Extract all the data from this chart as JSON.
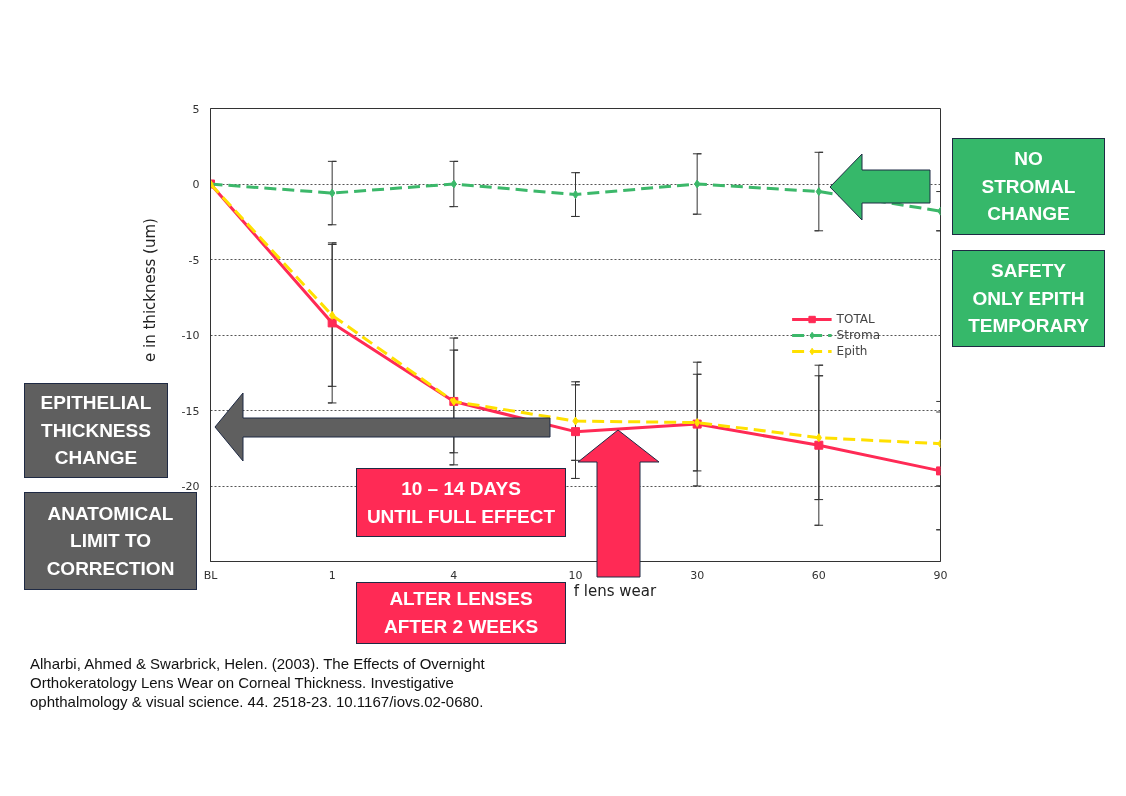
{
  "chart_data": {
    "type": "line",
    "categories": [
      "BL",
      "1",
      "4",
      "10",
      "30",
      "60",
      "90"
    ],
    "xlabel": "f lens wear",
    "ylabel": "e in thickness (um)",
    "ylim": [
      -25,
      5
    ],
    "yticks": [
      {
        "value": -25,
        "label": null
      },
      -20,
      -15,
      -10,
      -5,
      0,
      5
    ],
    "grid": "y",
    "legend": "right",
    "series": [
      {
        "name": "TOTAL",
        "color": "#ff2a55",
        "marker": "square",
        "line_style": "solid",
        "values": [
          0,
          -9.2,
          -14.4,
          -16.4,
          -15.9,
          -17.3,
          -19.0
        ],
        "errors": [
          null,
          5.3,
          4.2,
          3.1,
          4.1,
          5.3,
          3.9
        ]
      },
      {
        "name": "Stroma",
        "color": "#3cb86a",
        "marker": "diamond",
        "line_style": "dashed",
        "values": [
          0,
          -0.6,
          0,
          -0.7,
          0,
          -0.5,
          -1.8
        ],
        "errors": [
          null,
          2.1,
          1.5,
          1.45,
          2.0,
          2.6,
          1.3
        ]
      },
      {
        "name": "Epith",
        "color": "#ffe000",
        "marker": "diamond",
        "line_style": "dashed",
        "values": [
          0,
          -8.7,
          -14.4,
          -15.7,
          -15.8,
          -16.8,
          -17.2
        ],
        "errors": [
          null,
          4.7,
          3.4,
          2.6,
          3.2,
          4.1,
          2.8
        ]
      }
    ],
    "annotations": [
      "NO\nSTROMAL\nCHANGE",
      "SAFETY\nONLY EPITH\nTEMPORARY",
      "EPITHELIAL\nTHICKNESS\nCHANGE",
      "ANATOMICAL\nLIMIT TO\nCORRECTION",
      "10 – 14 DAYS\nUNTIL FULL EFFECT",
      "ALTER LENSES\nAFTER 2 WEEKS",
      "Alharbi, Ahmed & Swarbrick, Helen. (2003). The Effects of Overnight Orthokeratology Lens Wear on Corneal Thickness. Investigative ophthalmology & visual science. 44. 2518-23. 10.1167/iovs.02-0680."
    ]
  }
}
